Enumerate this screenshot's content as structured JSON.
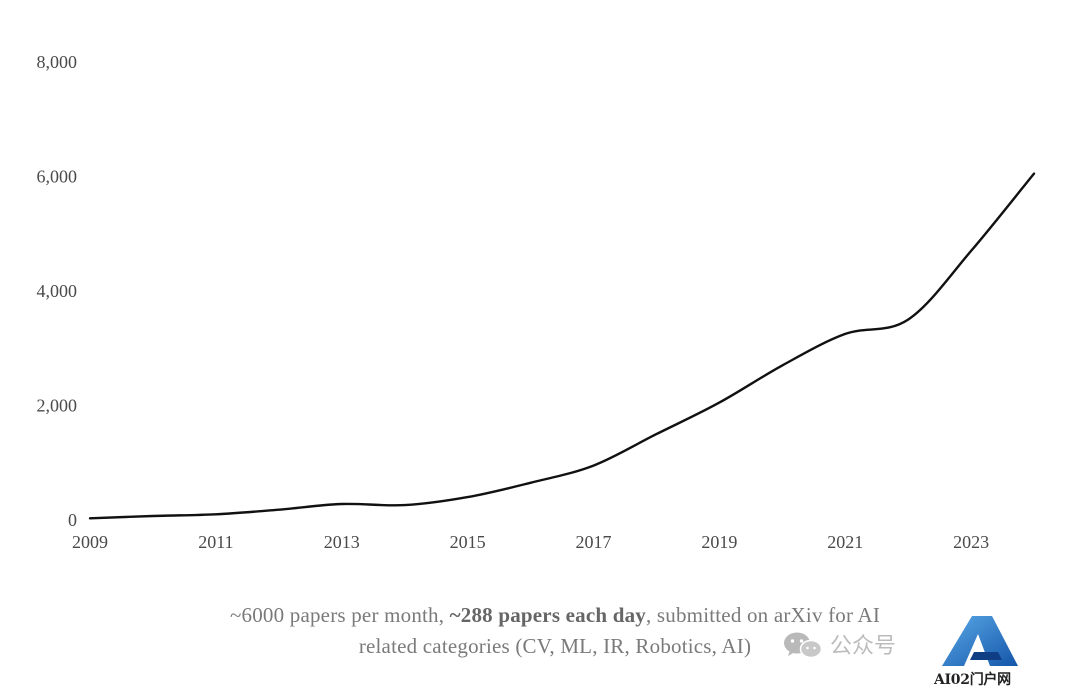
{
  "chart_data": {
    "type": "line",
    "x": [
      2009,
      2010,
      2011,
      2012,
      2013,
      2014,
      2015,
      2016,
      2017,
      2018,
      2019,
      2020,
      2021,
      2022,
      2023,
      2024
    ],
    "values": [
      30,
      70,
      100,
      180,
      280,
      260,
      400,
      650,
      950,
      1500,
      2050,
      2700,
      3250,
      3500,
      4700,
      6050
    ],
    "x_ticks": [
      "2009",
      "2011",
      "2013",
      "2015",
      "2017",
      "2019",
      "2021",
      "2023"
    ],
    "y_ticks": [
      "0",
      "2,000",
      "4,000",
      "6,000",
      "8,000"
    ],
    "xlim": [
      2009,
      2024
    ],
    "ylim": [
      0,
      8000
    ],
    "line_color": "#111111",
    "grid": false,
    "title": "",
    "xlabel": "",
    "ylabel": ""
  },
  "caption": {
    "line1_pre": "~6000 papers per month, ",
    "line1_bold": "~288 papers each day",
    "line1_post": ", submitted on arXiv for AI",
    "line2": "related categories (CV, ML, IR, Robotics, AI)"
  },
  "watermark": {
    "wechat_icon": "wechat-icon",
    "text": "公众号",
    "logo_icon": "ai-logo-icon",
    "logo_text": "AI02门户网"
  }
}
